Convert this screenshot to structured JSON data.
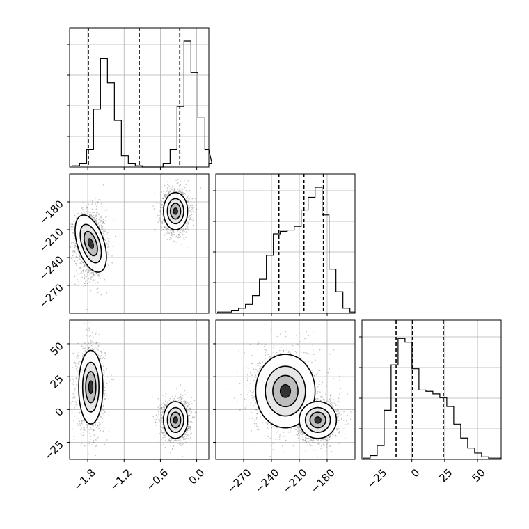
{
  "chart_data": {
    "type": "corner",
    "grid": true,
    "params": [
      {
        "range": [
          -2.1,
          0.2
        ],
        "ticks": [
          -1.8,
          -1.2,
          -0.6,
          0.0
        ],
        "tick_labels": [
          "−1.8",
          "−1.2",
          "−0.6",
          "0.0"
        ],
        "quantiles": [
          -1.79,
          -0.95,
          -0.28
        ],
        "hist": {
          "edges_start": -2.05,
          "bin_width": 0.115,
          "counts": [
            0.01,
            0.03,
            0.14,
            0.46,
            0.86,
            0.67,
            0.37,
            0.09,
            0.03,
            0.01,
            0,
            0,
            0,
            0.03,
            0.14,
            0.48,
            1.0,
            0.75,
            0.39,
            0.14,
            0.03
          ]
        }
      },
      {
        "range": [
          -300,
          -150
        ],
        "ticks": [
          -270,
          -240,
          -210,
          -180
        ],
        "tick_labels": [
          "−270",
          "−240",
          "−210",
          "−180"
        ],
        "quantiles": [
          -232,
          -205,
          -184
        ],
        "hist": {
          "edges_start": -298,
          "bin_width": 7.5,
          "counts": [
            0.01,
            0.01,
            0.02,
            0.04,
            0.07,
            0.14,
            0.27,
            0.46,
            0.63,
            0.65,
            0.66,
            0.69,
            0.82,
            0.92,
            1.0,
            0.78,
            0.35,
            0.17,
            0.04,
            0.01
          ]
        }
      },
      {
        "range": [
          -38,
          68
        ],
        "ticks": [
          -25,
          0,
          25,
          50
        ],
        "tick_labels": [
          "−25",
          "0",
          "25",
          "50"
        ],
        "quantiles": [
          -12,
          0.5,
          24
        ],
        "hist": {
          "edges_start": -37,
          "bin_width": 5.3,
          "counts": [
            0.01,
            0.03,
            0.11,
            0.39,
            0.75,
            0.96,
            0.93,
            0.72,
            0.55,
            0.54,
            0.52,
            0.49,
            0.42,
            0.28,
            0.17,
            0.09,
            0.05,
            0.02,
            0.01,
            0.01
          ]
        }
      }
    ],
    "axis_tick_labels": {
      "row2_y": [
        "−180",
        "−210",
        "−240",
        "−270"
      ],
      "row3_y": [
        "50",
        "25",
        "0",
        "−25"
      ]
    },
    "pairs": [
      {
        "x_param": 0,
        "y_param": 1,
        "clusters": [
          {
            "center": [
              -1.75,
              -225
            ],
            "spread": [
              0.11,
              16
            ],
            "weight": 0.5
          },
          {
            "center": [
              -0.35,
              -190
            ],
            "spread": [
              0.1,
              10
            ],
            "weight": 0.5
          }
        ]
      },
      {
        "x_param": 0,
        "y_param": 2,
        "clusters": [
          {
            "center": [
              -1.75,
              17
            ],
            "spread": [
              0.1,
              14
            ],
            "weight": 0.5
          },
          {
            "center": [
              -0.35,
              -8
            ],
            "spread": [
              0.1,
              7
            ],
            "weight": 0.5
          }
        ]
      },
      {
        "x_param": 1,
        "y_param": 2,
        "clusters": [
          {
            "center": [
              -225,
              14
            ],
            "spread": [
              16,
              14
            ],
            "weight": 0.5
          },
          {
            "center": [
              -190,
              -8
            ],
            "spread": [
              10,
              7
            ],
            "weight": 0.5
          }
        ]
      }
    ]
  }
}
